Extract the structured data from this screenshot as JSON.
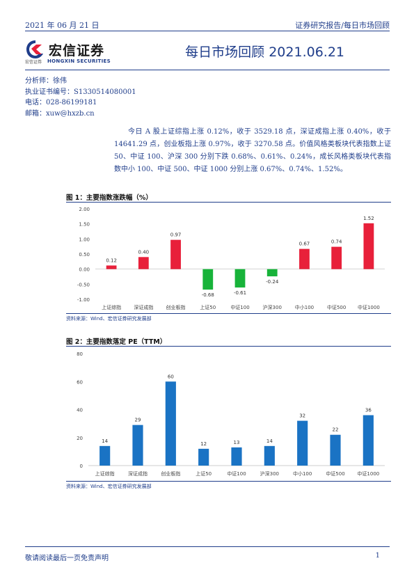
{
  "header": {
    "date": "2021 年 06 月 21 日",
    "breadcrumb": "证券研究报告/每日市场回顾"
  },
  "logo": {
    "name_cn": "宏信证券",
    "small_cn": "宏信证券",
    "name_en": "HONGXIN SECURITIES"
  },
  "title": "每日市场回顾 2021.06.21",
  "analyst": {
    "name": "分析师：徐伟",
    "license": "执业证书编号：S1330514080001",
    "phone": "电话：028-86199181",
    "email": "邮箱：xuw@hxzb.cn"
  },
  "summary": "今日 A 股上证综指上涨 0.12%，收于 3529.18 点，深证成指上涨 0.40%，收于 14641.29 点，创业板指上涨 0.97%，收于 3270.58 点。价值风格类板块代表指数上证 50、中证 100、沪深 300 分别下跌 0.68%、0.61%、0.24%，成长风格类板块代表指数中小 100、中证 500、中证 1000 分别上涨 0.67%、0.74%、1.52%。",
  "colors": {
    "brand_blue": "#1f3d8a",
    "up_red": "#e8203a",
    "down_green": "#18b33a",
    "bar_blue": "#1a73c4"
  },
  "figure1": {
    "title": "图 1：主要指数涨跌幅（%）",
    "source": "资料来源：Wind、宏信证券研究发展部"
  },
  "figure2": {
    "title": "图 2：主要指数落定 PE（TTM）",
    "source": "资料来源：Wind、宏信证券研究发展部"
  },
  "chart_data": [
    {
      "type": "bar",
      "categories": [
        "上证综指",
        "深证成指",
        "创业板指",
        "上证50",
        "中证100",
        "沪深300",
        "中小100",
        "中证500",
        "中证1000"
      ],
      "values": [
        0.12,
        0.4,
        0.97,
        -0.68,
        -0.61,
        -0.24,
        0.67,
        0.74,
        1.52
      ],
      "value_labels": [
        "0.12",
        "0.40",
        "0.97",
        "-0.68",
        "-0.61",
        "-0.24",
        "0.67",
        "0.74",
        "1.52"
      ],
      "yticks": [
        "2.00",
        "1.50",
        "1.00",
        "0.50",
        "0.00",
        "-0.50",
        "-1.00"
      ],
      "ylim": [
        -1.0,
        2.0
      ],
      "grid": false,
      "title": "",
      "xlabel": "",
      "ylabel": ""
    },
    {
      "type": "bar",
      "categories": [
        "上证综指",
        "深证成指",
        "创业板指",
        "上证50",
        "中证100",
        "沪深300",
        "中小100",
        "中证500",
        "中证1000"
      ],
      "values": [
        14,
        29,
        60,
        12,
        13,
        14,
        32,
        22,
        36
      ],
      "value_labels": [
        "14",
        "29",
        "60",
        "12",
        "13",
        "14",
        "32",
        "22",
        "36"
      ],
      "yticks": [
        "80",
        "60",
        "40",
        "20",
        "0"
      ],
      "ylim": [
        0,
        80
      ],
      "grid": false,
      "title": "",
      "xlabel": "",
      "ylabel": ""
    }
  ],
  "footer": {
    "disclaimer": "敬请阅读最后一页免责声明",
    "page": "1"
  }
}
